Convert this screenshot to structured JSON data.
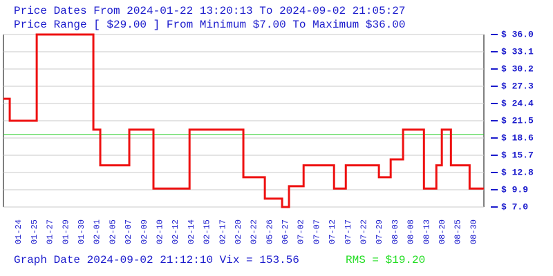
{
  "chart_data": {
    "type": "step",
    "title": "Price Dates From 2024-01-22 13:20:13 To 2024-09-02 21:05:27",
    "subtitle": "Price Range [ $29.00 ] From Minimum $7.00 To Maximum $36.00",
    "footer": "Graph Date 2024-09-02 21:12:10 Vix = 153.56",
    "rms": {
      "value": 19.2,
      "label": "RMS = $19.20"
    },
    "rms_color": "#22cc22",
    "categories": [
      "01-24",
      "01-25",
      "01-27",
      "01-29",
      "01-30",
      "02-01",
      "02-05",
      "02-07",
      "02-09",
      "02-10",
      "02-12",
      "02-14",
      "02-15",
      "02-17",
      "02-20",
      "02-22",
      "05-26",
      "06-27",
      "07-02",
      "07-07",
      "07-12",
      "07-17",
      "07-22",
      "07-29",
      "08-03",
      "08-08",
      "08-13",
      "08-20",
      "08-25",
      "08-30"
    ],
    "series": [
      {
        "name": "Price",
        "color": "#ee1111",
        "x": [
          -0.97,
          -0.57,
          1.15,
          4.76,
          5.2,
          7.05,
          8.59,
          10.89,
          14.32,
          15.69,
          16.79,
          17.23,
          18.16,
          20.1,
          20.85,
          22.96,
          23.71,
          24.5,
          25.83,
          26.62,
          26.97,
          27.55,
          28.74
        ],
        "values": [
          25.2,
          21.5,
          36.0,
          20.0,
          14.0,
          20.0,
          10.1,
          20.0,
          12.0,
          8.4,
          7.0,
          10.5,
          14.0,
          10.1,
          14.0,
          12.0,
          15.0,
          20.0,
          10.1,
          14.0,
          20.0,
          14.0,
          10.1
        ]
      }
    ],
    "xlim": [
      -0.97,
      29.65
    ],
    "ylim": [
      7,
      36
    ],
    "yticks": [
      {
        "value": 7.0,
        "label": "$ 7.0"
      },
      {
        "value": 9.9,
        "label": "$ 9.9"
      },
      {
        "value": 12.8,
        "label": "$ 12.8"
      },
      {
        "value": 15.7,
        "label": "$ 15.7"
      },
      {
        "value": 18.6,
        "label": "$ 18.6"
      },
      {
        "value": 21.5,
        "label": "$ 21.5"
      },
      {
        "value": 24.4,
        "label": "$ 24.4"
      },
      {
        "value": 27.3,
        "label": "$ 27.3"
      },
      {
        "value": 30.2,
        "label": "$ 30.2"
      },
      {
        "value": 33.1,
        "label": "$ 33.1"
      },
      {
        "value": 36.0,
        "label": "$ 36.0"
      }
    ],
    "grid": true
  }
}
